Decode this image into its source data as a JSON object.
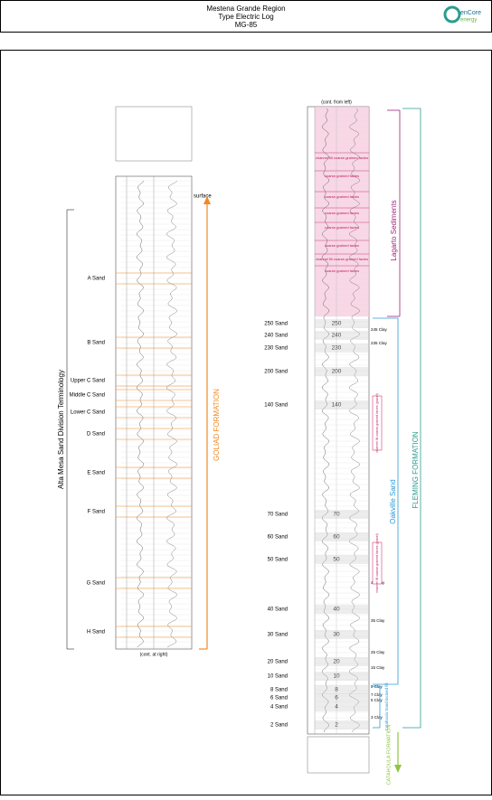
{
  "header": {
    "title_lines": [
      "Mestena Grande Region",
      "Type Electric Log",
      "MG-85"
    ],
    "logo": {
      "name": "enCore",
      "sub": "energy"
    }
  },
  "left_log": {
    "terminology_title": "Alta Mesa Sand Division Terminology",
    "sands": [
      "A Sand",
      "B Sand",
      "Upper C Sand",
      "Middle C Sand",
      "Lower C Sand",
      "D Sand",
      "E Sand",
      "F Sand",
      "G Sand",
      "H Sand"
    ],
    "surface": "surface",
    "formation": "GOLIAD FORMATION",
    "continuation": "(cont. at right)"
  },
  "right_log": {
    "continuation": "(cont. from left)",
    "sands": [
      {
        "label": "250 Sand",
        "number": "250"
      },
      {
        "label": "240 Sand",
        "number": "240"
      },
      {
        "label": "230 Sand",
        "number": "230"
      },
      {
        "label": "200 Sand",
        "number": "200"
      },
      {
        "label": "140 Sand",
        "number": "140"
      },
      {
        "label": "70 Sand",
        "number": "70"
      },
      {
        "label": "60 Sand",
        "number": "60"
      },
      {
        "label": "50 Sand",
        "number": "50"
      },
      {
        "label": "40 Sand",
        "number": "40"
      },
      {
        "label": "30 Sand",
        "number": "30"
      },
      {
        "label": "20 Sand",
        "number": "20"
      },
      {
        "label": "10 Sand",
        "number": "10"
      },
      {
        "label": "8 Sand",
        "number": "8"
      },
      {
        "label": "6 Sand",
        "number": "6"
      },
      {
        "label": "4 Sand",
        "number": "4"
      },
      {
        "label": "2 Sand",
        "number": "2"
      }
    ],
    "clays": [
      "245 Clay",
      "235 Clay",
      "45 Clay",
      "35 Clay",
      "25 Clay",
      "15 Clay",
      "9 Clay",
      "7 Clay",
      "5 Clay",
      "3 Clay"
    ],
    "facies": [
      "channel fill coarse-grained facies",
      "coarse-grained facies",
      "coarse-grained facies",
      "coarse-grained facies",
      "coarse-grained facies",
      "coarse-grained facies",
      "channel fill coarse-grained facies",
      "coarse-grained facies"
    ],
    "annotations": [
      "channel fill coarse-grained facies (gravel)",
      "channel fill coarse-grained facies (gravel)"
    ],
    "formations": {
      "lagarto": "Lagarto Sediments",
      "oakville": "Oakville Sand",
      "fleming": "FLEMING FORMATION",
      "catahoula_sand": "Catahoula Sand incised fill",
      "catahoula_formation": "CATAHOULA FORMATION"
    }
  }
}
